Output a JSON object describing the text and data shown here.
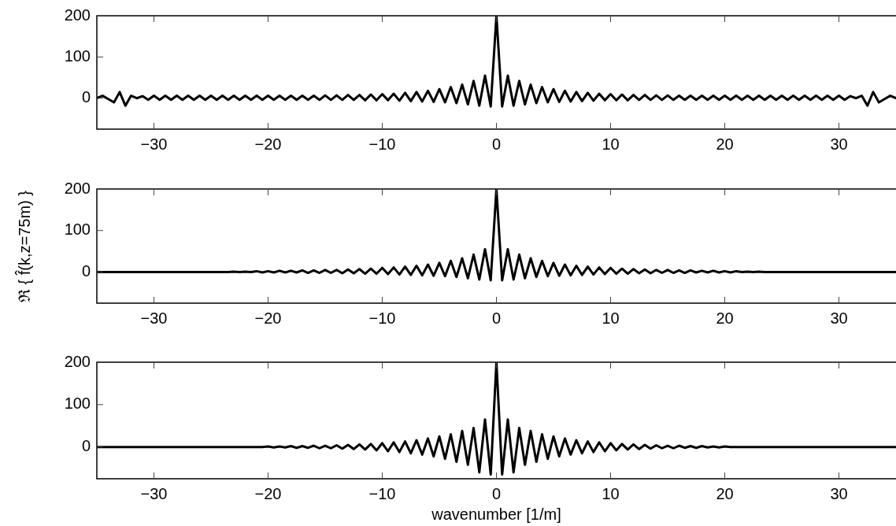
{
  "chart_data": [
    {
      "type": "line",
      "color": "#000000",
      "xlim": [
        -35,
        35
      ],
      "ylim": [
        -75,
        200
      ],
      "yticks": [
        0,
        100,
        200
      ],
      "xticks": [
        {
          "value": -30,
          "label": "−30"
        },
        {
          "value": -20,
          "label": "−20"
        },
        {
          "value": -10,
          "label": "−10"
        },
        0,
        10,
        20,
        30
      ],
      "x": [
        -35,
        -34.5,
        -34,
        -33.5,
        -33,
        -32.5,
        -32,
        -31.5,
        -31,
        -30.5,
        -30,
        -29.5,
        -29,
        -28.5,
        -28,
        -27.5,
        -27,
        -26.5,
        -26,
        -25.5,
        -25,
        -24.5,
        -24,
        -23.5,
        -23,
        -22.5,
        -22,
        -21.5,
        -21,
        -20.5,
        -20,
        -19.5,
        -19,
        -18.5,
        -18,
        -17.5,
        -17,
        -16.5,
        -16,
        -15.5,
        -15,
        -14.5,
        -14,
        -13.5,
        -13,
        -12.5,
        -12,
        -11.5,
        -11,
        -10.5,
        -10,
        -9.5,
        -9,
        -8.5,
        -8,
        -7.5,
        -7,
        -6.5,
        -6,
        -5.5,
        -5,
        -4.5,
        -4,
        -3.5,
        -3,
        -2.5,
        -2,
        -1.5,
        -1,
        -0.5,
        0,
        0.5,
        1,
        1.5,
        2,
        2.5,
        3,
        3.5,
        4,
        4.5,
        5,
        5.5,
        6,
        6.5,
        7,
        7.5,
        8,
        8.5,
        9,
        9.5,
        10,
        10.5,
        11,
        11.5,
        12,
        12.5,
        13,
        13.5,
        14,
        14.5,
        15,
        15.5,
        16,
        16.5,
        17,
        17.5,
        18,
        18.5,
        19,
        19.5,
        20,
        20.5,
        21,
        21.5,
        22,
        22.5,
        23,
        23.5,
        24,
        24.5,
        25,
        25.5,
        26,
        26.5,
        27,
        27.5,
        28,
        28.5,
        29,
        29.5,
        30,
        30.5,
        31,
        31.5,
        32,
        32.5,
        33,
        33.5,
        34,
        34.5,
        35
      ],
      "values": [
        0,
        6,
        -2,
        -10,
        15,
        -18,
        6,
        0,
        5,
        -4,
        6,
        -4,
        6,
        -4,
        6,
        -4,
        6,
        -4,
        6,
        -4,
        6,
        -4,
        6,
        -4,
        6,
        -4,
        6,
        -4,
        6,
        -4,
        6,
        -4,
        6,
        -4,
        6,
        -4,
        6,
        -4,
        6,
        -4,
        7,
        -4,
        7,
        -4,
        8,
        -4,
        8,
        -5,
        9,
        -5,
        10,
        -5,
        11,
        -6,
        13,
        -7,
        15,
        -8,
        18,
        -9,
        22,
        -10,
        27,
        -12,
        33,
        -15,
        42,
        -18,
        55,
        -20,
        200,
        -20,
        55,
        -18,
        42,
        -15,
        33,
        -12,
        27,
        -10,
        22,
        -9,
        18,
        -8,
        15,
        -7,
        13,
        -6,
        11,
        -5,
        10,
        -5,
        9,
        -5,
        8,
        -4,
        8,
        -4,
        7,
        -4,
        7,
        -4,
        6,
        -4,
        6,
        -4,
        6,
        -4,
        6,
        -4,
        6,
        -4,
        6,
        -4,
        6,
        -4,
        6,
        -4,
        6,
        -4,
        6,
        -4,
        6,
        -4,
        6,
        -4,
        6,
        -4,
        6,
        -4,
        6,
        -4,
        5,
        0,
        6,
        -18,
        15,
        -10,
        -2,
        6,
        0
      ]
    },
    {
      "type": "line",
      "color": "#000000",
      "xlim": [
        -35,
        35
      ],
      "ylim": [
        -75,
        200
      ],
      "yticks": [
        0,
        100,
        200
      ],
      "ylabel": "ℜ { f̂(k,z=75m) }",
      "xticks": [
        {
          "value": -30,
          "label": "−30"
        },
        {
          "value": -20,
          "label": "−20"
        },
        {
          "value": -10,
          "label": "−10"
        },
        0,
        10,
        20,
        30
      ],
      "x": [
        -35,
        -34.5,
        -34,
        -33.5,
        -33,
        -32.5,
        -32,
        -31.5,
        -31,
        -30.5,
        -30,
        -29.5,
        -29,
        -28.5,
        -28,
        -27.5,
        -27,
        -26.5,
        -26,
        -25.5,
        -25,
        -24.5,
        -24,
        -23.5,
        -23,
        -22.5,
        -22,
        -21.5,
        -21,
        -20.5,
        -20,
        -19.5,
        -19,
        -18.5,
        -18,
        -17.5,
        -17,
        -16.5,
        -16,
        -15.5,
        -15,
        -14.5,
        -14,
        -13.5,
        -13,
        -12.5,
        -12,
        -11.5,
        -11,
        -10.5,
        -10,
        -9.5,
        -9,
        -8.5,
        -8,
        -7.5,
        -7,
        -6.5,
        -6,
        -5.5,
        -5,
        -4.5,
        -4,
        -3.5,
        -3,
        -2.5,
        -2,
        -1.5,
        -1,
        -0.5,
        0,
        0.5,
        1,
        1.5,
        2,
        2.5,
        3,
        3.5,
        4,
        4.5,
        5,
        5.5,
        6,
        6.5,
        7,
        7.5,
        8,
        8.5,
        9,
        9.5,
        10,
        10.5,
        11,
        11.5,
        12,
        12.5,
        13,
        13.5,
        14,
        14.5,
        15,
        15.5,
        16,
        16.5,
        17,
        17.5,
        18,
        18.5,
        19,
        19.5,
        20,
        20.5,
        21,
        21.5,
        22,
        22.5,
        23,
        23.5,
        24,
        24.5,
        25,
        25.5,
        26,
        26.5,
        27,
        27.5,
        28,
        28.5,
        29,
        29.5,
        30,
        30.5,
        31,
        31.5,
        32,
        32.5,
        33,
        33.5,
        34,
        34.5,
        35
      ],
      "values": [
        0,
        0,
        0,
        0,
        0,
        0,
        0,
        0,
        0,
        0,
        0,
        0,
        0,
        0,
        0,
        0,
        0,
        0,
        0,
        0,
        0,
        0,
        0,
        0,
        1,
        0,
        1,
        0,
        2,
        -1,
        2,
        -1,
        3,
        -1,
        3,
        -1,
        4,
        -2,
        4,
        -2,
        5,
        -2,
        5,
        -3,
        6,
        -3,
        7,
        -4,
        8,
        -4,
        10,
        -5,
        11,
        -6,
        13,
        -7,
        15,
        -8,
        18,
        -9,
        22,
        -10,
        27,
        -12,
        33,
        -15,
        42,
        -18,
        55,
        -20,
        200,
        -20,
        55,
        -18,
        42,
        -15,
        33,
        -12,
        27,
        -10,
        22,
        -9,
        18,
        -8,
        15,
        -7,
        13,
        -6,
        11,
        -5,
        10,
        -4,
        8,
        -4,
        7,
        -3,
        6,
        -3,
        5,
        -2,
        5,
        -2,
        4,
        -2,
        4,
        -1,
        3,
        -1,
        3,
        -1,
        2,
        -1,
        2,
        0,
        1,
        0,
        1,
        0,
        0,
        0,
        0,
        0,
        0,
        0,
        0,
        0,
        0,
        0,
        0,
        0,
        0,
        0,
        0,
        0,
        0,
        0,
        0,
        0,
        0,
        0,
        0
      ]
    },
    {
      "type": "line",
      "color": "#000000",
      "xlim": [
        -35,
        35
      ],
      "ylim": [
        -75,
        200
      ],
      "yticks": [
        0,
        100,
        200
      ],
      "xlabel": "wavenumber [1/m]",
      "xticks": [
        {
          "value": -30,
          "label": "−30"
        },
        {
          "value": -20,
          "label": "−20"
        },
        {
          "value": -10,
          "label": "−10"
        },
        0,
        10,
        20,
        30
      ],
      "x": [
        -35,
        -34.5,
        -34,
        -33.5,
        -33,
        -32.5,
        -32,
        -31.5,
        -31,
        -30.5,
        -30,
        -29.5,
        -29,
        -28.5,
        -28,
        -27.5,
        -27,
        -26.5,
        -26,
        -25.5,
        -25,
        -24.5,
        -24,
        -23.5,
        -23,
        -22.5,
        -22,
        -21.5,
        -21,
        -20.5,
        -20,
        -19.5,
        -19,
        -18.5,
        -18,
        -17.5,
        -17,
        -16.5,
        -16,
        -15.5,
        -15,
        -14.5,
        -14,
        -13.5,
        -13,
        -12.5,
        -12,
        -11.5,
        -11,
        -10.5,
        -10,
        -9.5,
        -9,
        -8.5,
        -8,
        -7.5,
        -7,
        -6.5,
        -6,
        -5.5,
        -5,
        -4.5,
        -4,
        -3.5,
        -3,
        -2.5,
        -2,
        -1.5,
        -1,
        -0.5,
        0,
        0.5,
        1,
        1.5,
        2,
        2.5,
        3,
        3.5,
        4,
        4.5,
        5,
        5.5,
        6,
        6.5,
        7,
        7.5,
        8,
        8.5,
        9,
        9.5,
        10,
        10.5,
        11,
        11.5,
        12,
        12.5,
        13,
        13.5,
        14,
        14.5,
        15,
        15.5,
        16,
        16.5,
        17,
        17.5,
        18,
        18.5,
        19,
        19.5,
        20,
        20.5,
        21,
        21.5,
        22,
        22.5,
        23,
        23.5,
        24,
        24.5,
        25,
        25.5,
        26,
        26.5,
        27,
        27.5,
        28,
        28.5,
        29,
        29.5,
        30,
        30.5,
        31,
        31.5,
        32,
        32.5,
        33,
        33.5,
        34,
        34.5,
        35
      ],
      "values": [
        0,
        0,
        0,
        0,
        0,
        0,
        0,
        0,
        0,
        0,
        0,
        0,
        0,
        0,
        0,
        0,
        0,
        0,
        0,
        0,
        0,
        0,
        0,
        0,
        0,
        0,
        0,
        0,
        0,
        0,
        1,
        -1,
        1,
        -1,
        2,
        -2,
        2,
        -2,
        3,
        -3,
        3,
        -3,
        4,
        -4,
        5,
        -5,
        6,
        -6,
        7,
        -8,
        9,
        -10,
        11,
        -12,
        13,
        -15,
        16,
        -18,
        20,
        -22,
        25,
        -28,
        30,
        -35,
        38,
        -42,
        45,
        -60,
        65,
        -65,
        200,
        -65,
        65,
        -60,
        45,
        -42,
        38,
        -35,
        30,
        -28,
        25,
        -22,
        20,
        -18,
        16,
        -15,
        13,
        -12,
        11,
        -10,
        9,
        -8,
        7,
        -6,
        6,
        -5,
        5,
        -4,
        4,
        -3,
        3,
        -3,
        3,
        -2,
        2,
        -2,
        2,
        -1,
        1,
        -1,
        1,
        0,
        0,
        0,
        0,
        0,
        0,
        0,
        0,
        0,
        0,
        0,
        0,
        0,
        0,
        0,
        0,
        0,
        0,
        0,
        0,
        0,
        0,
        0,
        0,
        0,
        0,
        0,
        0,
        0,
        0
      ]
    }
  ]
}
